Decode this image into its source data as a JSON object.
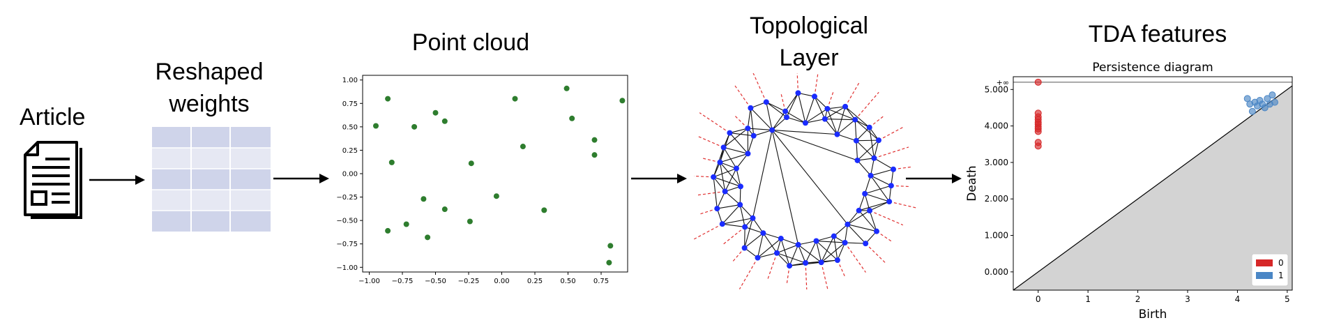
{
  "stages": {
    "article": "Article",
    "reshaped": [
      "Reshaped",
      "weights"
    ],
    "point_cloud": "Point cloud",
    "topological": [
      "Topological",
      "Layer"
    ],
    "tda": "TDA features"
  },
  "colors": {
    "table_dark": "#cfd4ea",
    "table_light": "#e6e8f3",
    "scatter_point": "#2e7d2e",
    "topo_node": "#1a2cff",
    "topo_dash": "#e03030",
    "pd_h0": "#d62728",
    "pd_h1": "#4a86c5",
    "pd_fill": "#d3d3d3"
  },
  "chart_data": [
    {
      "type": "scatter",
      "title": "",
      "xlabel": "",
      "ylabel": "",
      "xlim": [
        -1.05,
        0.95
      ],
      "ylim": [
        -1.05,
        1.05
      ],
      "xticks": [
        -1.0,
        -0.75,
        -0.5,
        -0.25,
        0.0,
        0.25,
        0.5,
        0.75
      ],
      "xtick_labels": [
        "−1.00",
        "−0.75",
        "−0.50",
        "−0.25",
        "0.00",
        "0.25",
        "0.50",
        "0.75"
      ],
      "yticks": [
        1.0,
        0.75,
        0.5,
        0.25,
        0.0,
        -0.25,
        -0.5,
        -0.75,
        -1.0
      ],
      "ytick_labels": [
        "1.00",
        "0.75",
        "0.50",
        "0.25",
        "0.00",
        "−0.25",
        "−0.50",
        "−0.75",
        "−1.00"
      ],
      "grid": false,
      "points": [
        {
          "x": -0.95,
          "y": 0.51
        },
        {
          "x": -0.86,
          "y": 0.8
        },
        {
          "x": -0.83,
          "y": 0.12
        },
        {
          "x": -0.86,
          "y": -0.61
        },
        {
          "x": -0.72,
          "y": -0.54
        },
        {
          "x": -0.66,
          "y": 0.5
        },
        {
          "x": -0.59,
          "y": -0.27
        },
        {
          "x": -0.56,
          "y": -0.68
        },
        {
          "x": -0.5,
          "y": 0.65
        },
        {
          "x": -0.43,
          "y": 0.56
        },
        {
          "x": -0.43,
          "y": -0.38
        },
        {
          "x": -0.23,
          "y": 0.11
        },
        {
          "x": -0.24,
          "y": -0.51
        },
        {
          "x": -0.04,
          "y": -0.24
        },
        {
          "x": 0.1,
          "y": 0.8
        },
        {
          "x": 0.16,
          "y": 0.29
        },
        {
          "x": 0.32,
          "y": -0.39
        },
        {
          "x": 0.49,
          "y": 0.91
        },
        {
          "x": 0.53,
          "y": 0.59
        },
        {
          "x": 0.7,
          "y": 0.36
        },
        {
          "x": 0.7,
          "y": 0.2
        },
        {
          "x": 0.91,
          "y": 0.78
        },
        {
          "x": 0.82,
          "y": -0.77
        },
        {
          "x": 0.81,
          "y": -0.95
        }
      ]
    },
    {
      "type": "scatter",
      "title": "Persistence diagram",
      "xlabel": "Birth",
      "ylabel": "Death",
      "xlim": [
        -0.5,
        5.1
      ],
      "ylim": [
        -0.5,
        5.35
      ],
      "xticks": [
        0,
        1,
        2,
        3,
        4,
        5
      ],
      "xtick_labels": [
        "0",
        "1",
        "2",
        "3",
        "4",
        "5"
      ],
      "yticks": [
        0,
        1,
        2,
        3,
        4,
        5
      ],
      "ytick_labels": [
        "0.000",
        "1.000",
        "2.000",
        "3.000",
        "4.000",
        "5.000"
      ],
      "inf_label": "+∞",
      "inf_value": 5.2,
      "legend": {
        "position": "bottom-right",
        "entries": [
          "0",
          "1"
        ]
      },
      "series": [
        {
          "name": "0",
          "points": [
            {
              "x": 0,
              "y": 5.2
            },
            {
              "x": 0,
              "y": 4.35
            },
            {
              "x": 0,
              "y": 4.25
            },
            {
              "x": 0,
              "y": 4.18
            },
            {
              "x": 0,
              "y": 4.1
            },
            {
              "x": 0,
              "y": 4.05
            },
            {
              "x": 0,
              "y": 3.98
            },
            {
              "x": 0,
              "y": 3.92
            },
            {
              "x": 0,
              "y": 3.85
            },
            {
              "x": 0,
              "y": 3.55
            },
            {
              "x": 0,
              "y": 3.45
            }
          ]
        },
        {
          "name": "1",
          "points": [
            {
              "x": 4.2,
              "y": 4.75
            },
            {
              "x": 4.25,
              "y": 4.6
            },
            {
              "x": 4.3,
              "y": 4.4
            },
            {
              "x": 4.35,
              "y": 4.65
            },
            {
              "x": 4.4,
              "y": 4.55
            },
            {
              "x": 4.45,
              "y": 4.7
            },
            {
              "x": 4.5,
              "y": 4.6
            },
            {
              "x": 4.55,
              "y": 4.5
            },
            {
              "x": 4.6,
              "y": 4.75
            },
            {
              "x": 4.65,
              "y": 4.6
            },
            {
              "x": 4.7,
              "y": 4.85
            },
            {
              "x": 4.75,
              "y": 4.65
            }
          ]
        }
      ]
    }
  ]
}
